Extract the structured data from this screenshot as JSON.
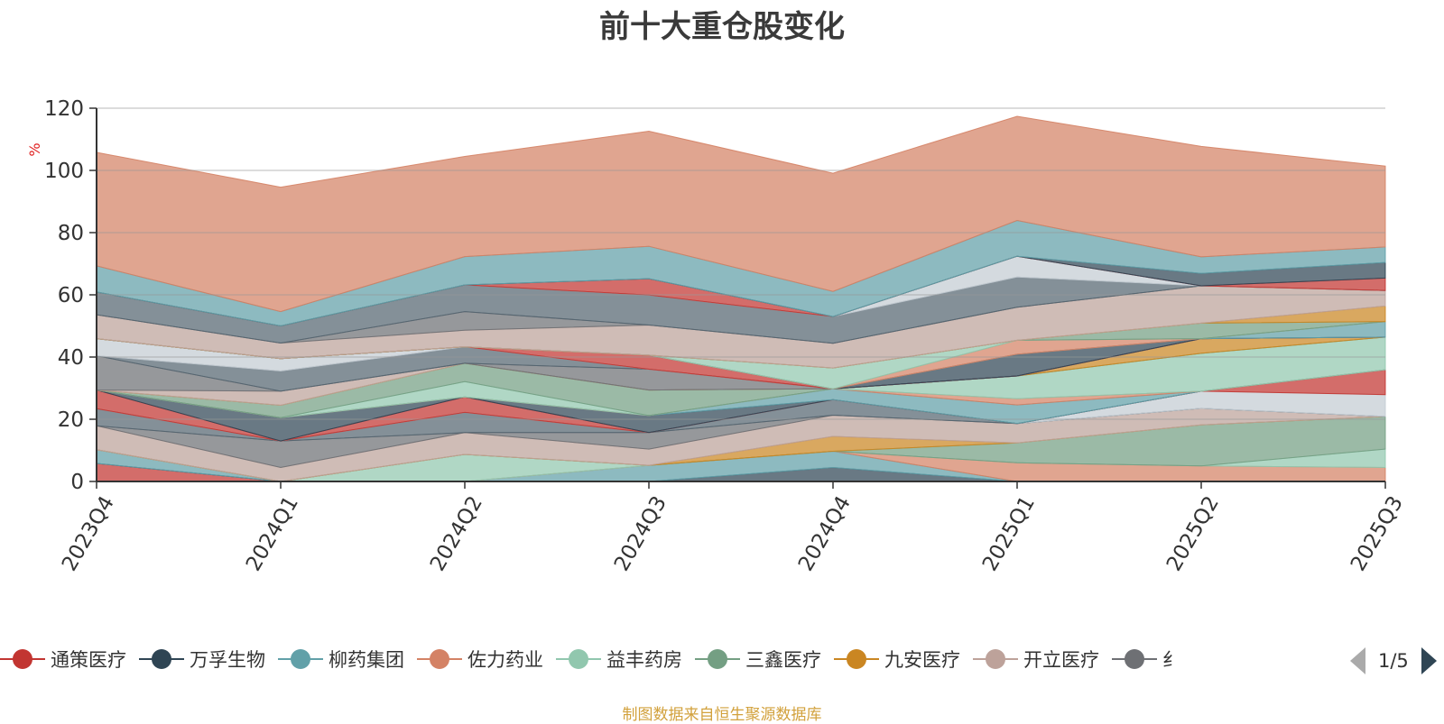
{
  "title": "前十大重仓股变化",
  "source_note": "制图数据来自恒生聚源数据库",
  "legend_pager": "1/5",
  "legend": [
    {
      "name": "通策医疗",
      "color": "#c23531"
    },
    {
      "name": "万孚生物",
      "color": "#2f4554"
    },
    {
      "name": "柳药集团",
      "color": "#61a0a8"
    },
    {
      "name": "佐力药业",
      "color": "#d48265"
    },
    {
      "name": "益丰药房",
      "color": "#91c7ae"
    },
    {
      "name": "三鑫医疗",
      "color": "#749f83"
    },
    {
      "name": "九安医疗",
      "color": "#ca8622"
    },
    {
      "name": "开立医疗",
      "color": "#bda29a"
    },
    {
      "name": "纟",
      "color": "#6e7074"
    }
  ],
  "chart_data": {
    "type": "area",
    "stacked": true,
    "title": "前十大重仓股变化",
    "ylabel": "%",
    "xlabel": "",
    "categories": [
      "2023Q4",
      "2024Q1",
      "2024Q2",
      "2024Q3",
      "2024Q4",
      "2025Q1",
      "2025Q2",
      "2025Q3"
    ],
    "ylim": [
      0,
      120
    ],
    "yticks": [
      0,
      20,
      40,
      60,
      80,
      100,
      120
    ],
    "grid": true,
    "legend_position": "bottom",
    "colors": [
      "#c23531",
      "#2f4554",
      "#61a0a8",
      "#d48265",
      "#91c7ae",
      "#749f83",
      "#ca8622",
      "#bda29a",
      "#6e7074",
      "#546570",
      "#c4ccd3"
    ],
    "series": [
      {
        "values": [
          5.8,
          0,
          0,
          0,
          0,
          0,
          0,
          0
        ]
      },
      {
        "values": [
          0,
          0,
          0,
          0,
          4.5,
          0,
          0,
          0
        ]
      },
      {
        "values": [
          4.4,
          0,
          0,
          5.2,
          5.2,
          0,
          0,
          0
        ]
      },
      {
        "values": [
          0,
          0,
          0,
          0,
          0,
          6.0,
          5.0,
          4.5
        ]
      },
      {
        "values": [
          0,
          0,
          8.7,
          0,
          0,
          0,
          0,
          5.9
        ]
      },
      {
        "values": [
          0,
          0,
          0,
          0,
          0,
          6.4,
          13.2,
          10.5
        ]
      },
      {
        "values": [
          0,
          0,
          0,
          0,
          4.8,
          0,
          0,
          0
        ]
      },
      {
        "values": [
          7.7,
          4.5,
          7.0,
          5.2,
          6.8,
          6.2,
          5.3,
          0
        ]
      },
      {
        "values": [
          0,
          8.5,
          0,
          5.3,
          0,
          0,
          0,
          0
        ]
      },
      {
        "values": [
          5.5,
          0,
          6.5,
          0,
          5.0,
          0,
          0,
          0
        ]
      },
      {
        "values": [
          0,
          0,
          0,
          0,
          0,
          0,
          5.5,
          7.0
        ]
      },
      {
        "values": [
          6.0,
          0,
          5.0,
          0,
          0,
          0,
          0,
          8.0
        ]
      },
      {
        "values": [
          0,
          7.5,
          0,
          5.5,
          0,
          0,
          0,
          0
        ]
      },
      {
        "values": [
          0,
          0,
          0,
          0,
          3.5,
          6.0,
          0,
          0
        ]
      },
      {
        "values": [
          0,
          0,
          0,
          0,
          0,
          2.0,
          0,
          0
        ]
      },
      {
        "values": [
          0,
          0,
          4.9,
          0,
          0,
          7.3,
          12.2,
          10.5
        ]
      },
      {
        "values": [
          0,
          4.0,
          5.9,
          8.2,
          0,
          0,
          0,
          0
        ]
      },
      {
        "values": [
          0,
          0,
          0,
          0,
          0,
          0,
          4.7,
          0
        ]
      },
      {
        "values": [
          0,
          4.5,
          0,
          0,
          0,
          0,
          0,
          0
        ]
      },
      {
        "values": [
          11.0,
          0,
          0,
          6.7,
          0,
          0,
          0,
          0
        ]
      },
      {
        "values": [
          0,
          6.5,
          5.3,
          0,
          0,
          0,
          0,
          0
        ]
      },
      {
        "values": [
          5.5,
          4.0,
          0,
          0,
          0,
          0,
          0,
          0
        ]
      },
      {
        "values": [
          0,
          0,
          0,
          4.5,
          0,
          0,
          0,
          0
        ]
      },
      {
        "values": [
          0,
          0,
          0,
          0,
          0,
          7.0,
          0,
          0
        ]
      },
      {
        "values": [
          0,
          0,
          0,
          0,
          0,
          0,
          0,
          5.0
        ]
      },
      {
        "values": [
          0,
          0,
          0,
          0,
          0,
          4.5,
          0,
          0
        ]
      },
      {
        "values": [
          0,
          0,
          0,
          0,
          6.7,
          0,
          0,
          0
        ]
      },
      {
        "values": [
          0,
          0,
          0,
          0,
          0,
          0,
          5.0,
          0
        ]
      },
      {
        "values": [
          0,
          0,
          0,
          0,
          0,
          0,
          0,
          5.0
        ]
      },
      {
        "values": [
          7.7,
          5.0,
          5.3,
          9.7,
          7.9,
          10.6,
          12.0,
          5.0
        ]
      },
      {
        "values": [
          0,
          0,
          6.0,
          0,
          0,
          0,
          0,
          0
        ]
      },
      {
        "values": [
          7.3,
          5.5,
          8.6,
          9.6,
          8.6,
          9.7,
          0,
          0
        ]
      },
      {
        "values": [
          0,
          0,
          0,
          0,
          0,
          6.7,
          0,
          0
        ]
      },
      {
        "values": [
          0,
          0,
          0,
          5.3,
          0,
          0,
          0,
          4.0
        ]
      },
      {
        "values": [
          0,
          0,
          0,
          0,
          0,
          0,
          4.0,
          5.0
        ]
      },
      {
        "values": [
          8.4,
          4.6,
          9.1,
          10.4,
          8.1,
          11.5,
          5.3,
          5.0
        ]
      },
      {
        "values": [
          36.5,
          40.0,
          32.2,
          37.0,
          38.0,
          33.5,
          35.5,
          26.0
        ]
      }
    ]
  }
}
